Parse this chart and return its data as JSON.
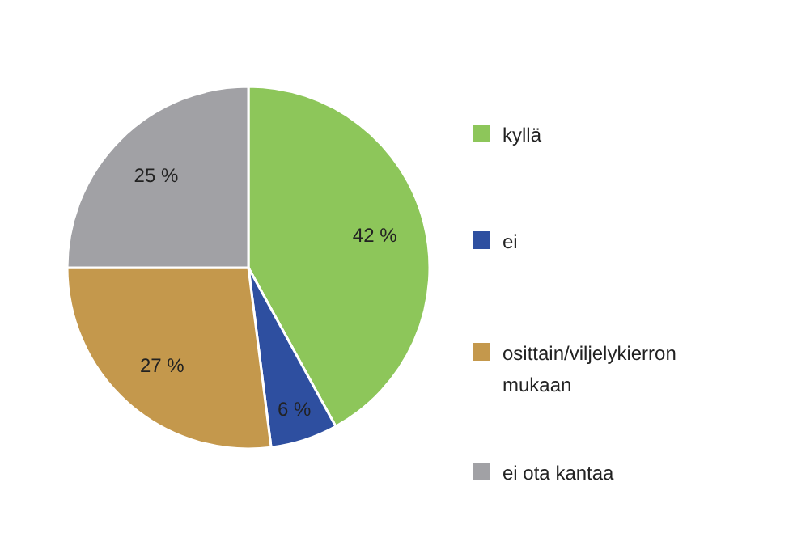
{
  "chart_data": {
    "type": "pie",
    "categories": [
      "kyllä",
      "ei",
      "osittain/viljelykierron mukaan",
      "ei ota kantaa"
    ],
    "values": [
      42,
      6,
      27,
      25
    ],
    "colors": [
      "#8dc65a",
      "#2e4fa0",
      "#c4984c",
      "#a1a1a5"
    ],
    "value_labels": [
      "42 %",
      "6 %",
      "27 %",
      "25 %"
    ],
    "legend": "right"
  }
}
